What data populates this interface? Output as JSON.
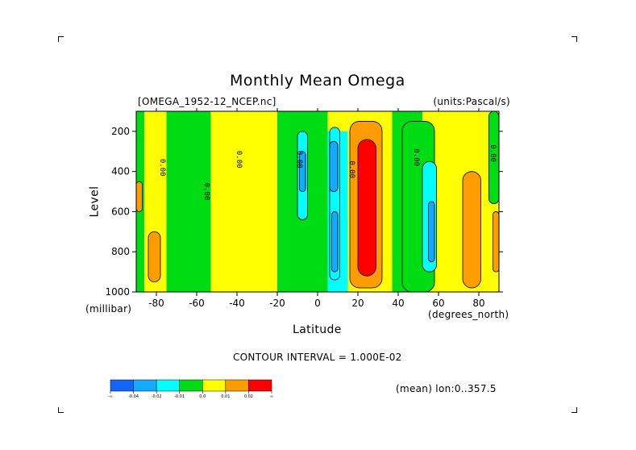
{
  "chart_data": {
    "type": "heatmap",
    "title": "Monthly Mean Omega",
    "file_label": "[OMEGA_1952-12_NCEP.nc]",
    "units_label": "(units:Pascal/s)",
    "xlabel": "Latitude",
    "x_units": "(degrees_north)",
    "ylabel": "Level",
    "y_units": "(millibar)",
    "xlim": [
      -90,
      90
    ],
    "ylim": [
      1000,
      100
    ],
    "x_ticks": [
      -80,
      -60,
      -40,
      -20,
      0,
      20,
      40,
      60,
      80
    ],
    "x_tick_labels": [
      "-80",
      "-60",
      "-40",
      "-20",
      "0",
      "20",
      "40",
      "60",
      "80"
    ],
    "y_ticks": [
      200,
      400,
      600,
      800,
      1000
    ],
    "y_tick_labels": [
      "200",
      "400",
      "600",
      "800",
      "1000"
    ],
    "contour_interval_label": "CONTOUR INTERVAL = 1.000E-02",
    "subset_label": "(mean) lon:0..357.5",
    "contour_labels": [
      "0.00",
      "0.00",
      "0.00",
      "0.00",
      "0.00",
      "0.00",
      "0.00"
    ],
    "levels": [
      {
        "label": "-∞",
        "color": "#1465ff"
      },
      {
        "label": "-0.04",
        "color": "#14aaff"
      },
      {
        "label": "-0.02",
        "color": "#00ffff"
      },
      {
        "label": "-0.01",
        "color": "#00dc14"
      },
      {
        "label": "0.0",
        "color": "#ffff00"
      },
      {
        "label": "0.01",
        "color": "#ff9c00"
      },
      {
        "label": "0.02",
        "color": "#ff0000"
      },
      {
        "label": "∞",
        "color": "#ffffff"
      }
    ],
    "bands": [
      {
        "x": [
          -90,
          -86
        ],
        "y": [
          100,
          1000
        ],
        "color": "#00dc14"
      },
      {
        "x": [
          -86,
          -75
        ],
        "y": [
          100,
          1000
        ],
        "color": "#ffff00"
      },
      {
        "x": [
          -75,
          -53
        ],
        "y": [
          100,
          1000
        ],
        "color": "#00dc14"
      },
      {
        "x": [
          -53,
          -20
        ],
        "y": [
          100,
          1000
        ],
        "color": "#ffff00"
      },
      {
        "x": [
          -20,
          5
        ],
        "y": [
          100,
          1000
        ],
        "color": "#00dc14"
      },
      {
        "x": [
          5,
          15
        ],
        "y": [
          200,
          1000
        ],
        "color": "#00ffff"
      },
      {
        "x": [
          15,
          37
        ],
        "y": [
          100,
          1000
        ],
        "color": "#ffff00"
      },
      {
        "x": [
          37,
          52
        ],
        "y": [
          100,
          1000
        ],
        "color": "#00dc14"
      },
      {
        "x": [
          52,
          90
        ],
        "y": [
          100,
          1000
        ],
        "color": "#ffff00"
      }
    ],
    "cells": [
      {
        "x": [
          -90,
          -87
        ],
        "y": [
          450,
          600
        ],
        "color": "#ff9c00"
      },
      {
        "x": [
          -84,
          -78
        ],
        "y": [
          700,
          950
        ],
        "color": "#ff9c00"
      },
      {
        "x": [
          -10,
          -5
        ],
        "y": [
          200,
          640
        ],
        "color": "#00ffff"
      },
      {
        "x": [
          -9,
          -6
        ],
        "y": [
          300,
          500
        ],
        "color": "#14aaff"
      },
      {
        "x": [
          6,
          11
        ],
        "y": [
          180,
          940
        ],
        "color": "#00ffff"
      },
      {
        "x": [
          7,
          10
        ],
        "y": [
          600,
          900
        ],
        "color": "#14aaff"
      },
      {
        "x": [
          6,
          10
        ],
        "y": [
          250,
          500
        ],
        "color": "#14aaff"
      },
      {
        "x": [
          16,
          32
        ],
        "y": [
          150,
          980
        ],
        "color": "#ff9c00"
      },
      {
        "x": [
          20,
          29
        ],
        "y": [
          240,
          920
        ],
        "color": "#ff0000"
      },
      {
        "x": [
          42,
          58
        ],
        "y": [
          150,
          1000
        ],
        "color": "#00dc14"
      },
      {
        "x": [
          52,
          59
        ],
        "y": [
          350,
          900
        ],
        "color": "#00ffff"
      },
      {
        "x": [
          55,
          58
        ],
        "y": [
          550,
          850
        ],
        "color": "#14aaff"
      },
      {
        "x": [
          72,
          81
        ],
        "y": [
          400,
          980
        ],
        "color": "#ff9c00"
      },
      {
        "x": [
          85,
          90
        ],
        "y": [
          100,
          560
        ],
        "color": "#00dc14"
      },
      {
        "x": [
          87,
          90
        ],
        "y": [
          600,
          900
        ],
        "color": "#ff9c00"
      }
    ]
  }
}
